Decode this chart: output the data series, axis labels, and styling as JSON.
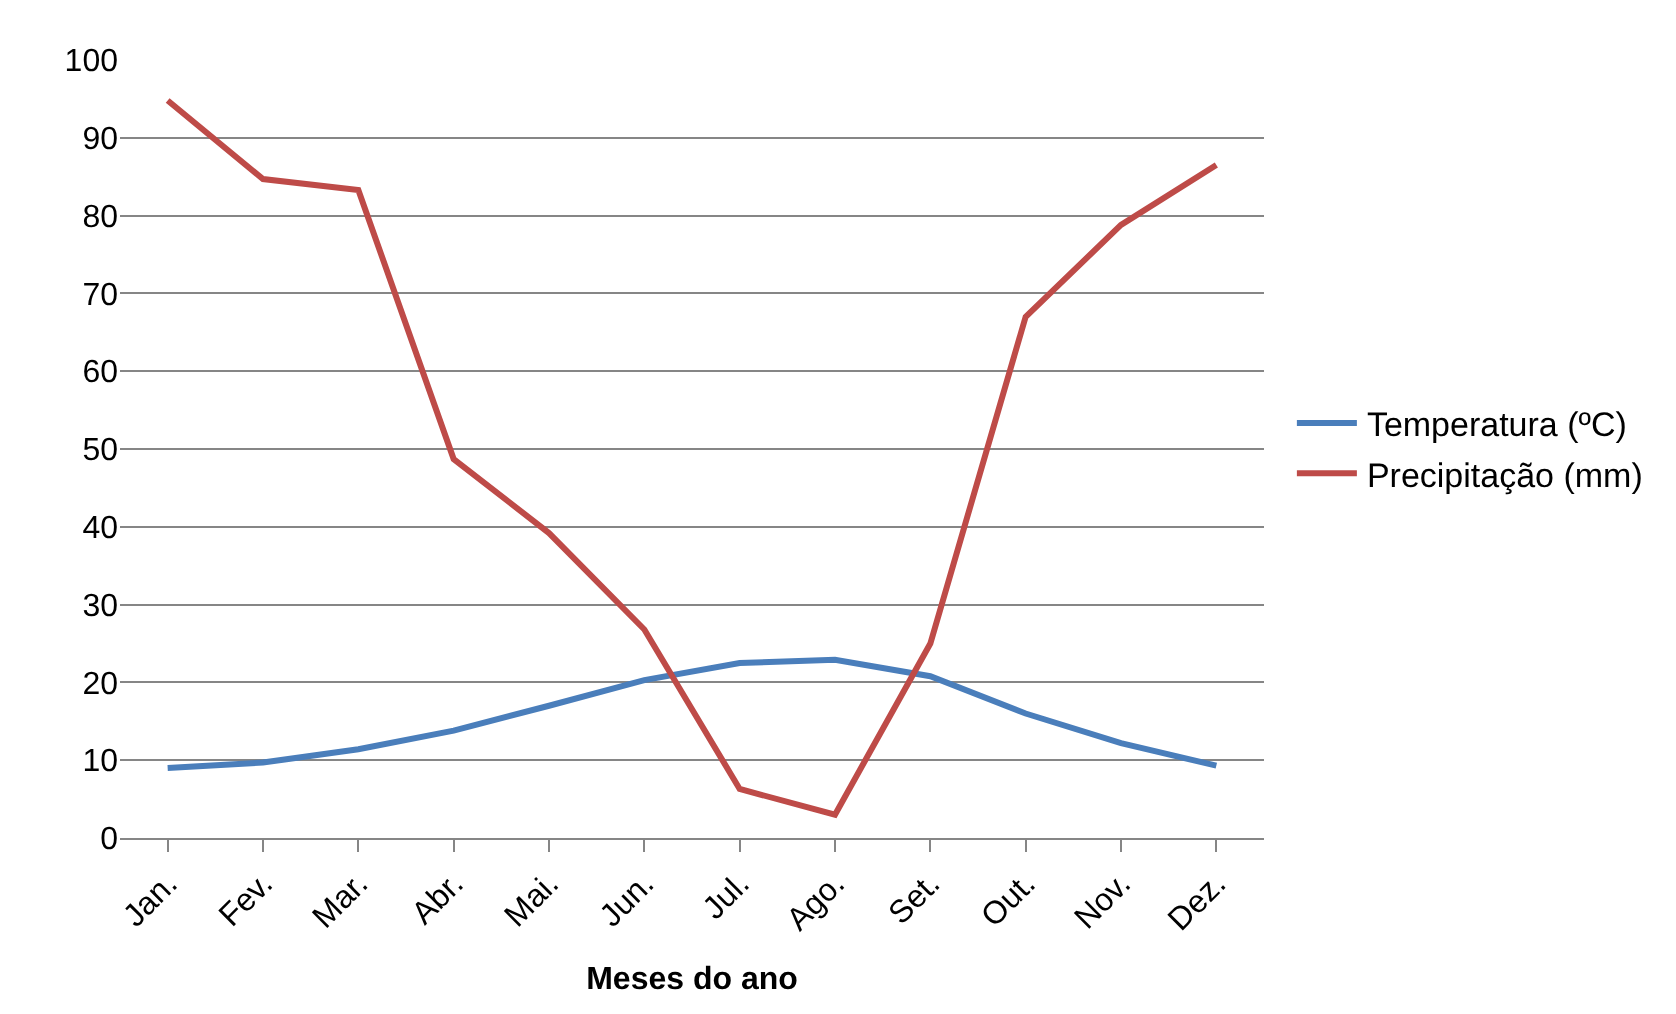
{
  "chart_data": {
    "type": "line",
    "xlabel": "Meses do ano",
    "categories": [
      "Jan.",
      "Fev.",
      "Mar.",
      "Abr.",
      "Mai.",
      "Jun.",
      "Jul.",
      "Ago.",
      "Set.",
      "Out.",
      "Nov.",
      "Dez."
    ],
    "series": [
      {
        "name": "Temperatura (ºC)",
        "color": "#4a7ebb",
        "values": [
          9,
          9.7,
          11.4,
          13.8,
          17,
          20.3,
          22.5,
          22.9,
          20.8,
          16,
          12.2,
          9.3
        ]
      },
      {
        "name": "Precipitação (mm)",
        "color": "#be4b48",
        "values": [
          94.8,
          84.7,
          83.3,
          48.7,
          39.2,
          26.8,
          6.3,
          3,
          25,
          67,
          78.8,
          86.5
        ]
      }
    ],
    "ylim": [
      0,
      100
    ],
    "yticks": [
      0,
      10,
      20,
      30,
      40,
      50,
      60,
      70,
      80,
      90,
      100
    ],
    "grid": "y",
    "legend": "right",
    "marker": "none",
    "line_style": "solid"
  }
}
